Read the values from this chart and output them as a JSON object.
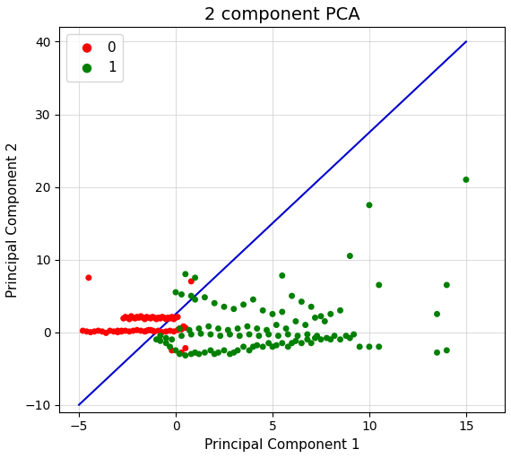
{
  "title": "2 component PCA",
  "xlabel": "Principal Component 1",
  "ylabel": "Principal Component 2",
  "xlim": [
    -6,
    17
  ],
  "ylim": [
    -11,
    42
  ],
  "xticks": [
    -5,
    0,
    5,
    10,
    15
  ],
  "yticks": [
    -10,
    0,
    10,
    20,
    30,
    40
  ],
  "line_x": [
    -5,
    15
  ],
  "line_y": [
    -10,
    40
  ],
  "line_color": "#0000cc",
  "line_width": 1.5,
  "red_color": "#ff0000",
  "green_color": "#008000",
  "point_size": 25,
  "grid_color": "#cccccc",
  "bg_color": "#ffffff",
  "title_fontsize": 14,
  "label_fontsize": 11,
  "tick_fontsize": 10,
  "red_points": [
    [
      -4.8,
      0.2
    ],
    [
      -4.6,
      0.1
    ],
    [
      -4.4,
      0.0
    ],
    [
      -4.2,
      0.1
    ],
    [
      -4.0,
      0.2
    ],
    [
      -3.8,
      0.1
    ],
    [
      -3.6,
      -0.1
    ],
    [
      -3.4,
      0.2
    ],
    [
      -3.2,
      0.1
    ],
    [
      -3.0,
      0.0
    ],
    [
      -2.8,
      0.2
    ],
    [
      -2.7,
      1.9
    ],
    [
      -2.6,
      2.1
    ],
    [
      -2.5,
      2.0
    ],
    [
      -2.4,
      1.8
    ],
    [
      -2.3,
      2.2
    ],
    [
      -2.2,
      2.0
    ],
    [
      -2.1,
      1.9
    ],
    [
      -2.0,
      2.1
    ],
    [
      -1.9,
      2.0
    ],
    [
      -1.8,
      2.2
    ],
    [
      -1.7,
      2.0
    ],
    [
      -1.6,
      1.8
    ],
    [
      -1.5,
      2.1
    ],
    [
      -1.4,
      2.0
    ],
    [
      -1.3,
      1.9
    ],
    [
      -1.2,
      2.1
    ],
    [
      -1.1,
      2.0
    ],
    [
      -1.0,
      1.8
    ],
    [
      -0.9,
      2.0
    ],
    [
      -0.8,
      1.9
    ],
    [
      -0.7,
      2.1
    ],
    [
      -0.6,
      2.0
    ],
    [
      -0.5,
      1.8
    ],
    [
      -0.4,
      2.0
    ],
    [
      -0.3,
      1.9
    ],
    [
      -0.2,
      2.1
    ],
    [
      -0.1,
      1.8
    ],
    [
      0.0,
      2.0
    ],
    [
      0.1,
      2.1
    ],
    [
      -1.5,
      0.2
    ],
    [
      -1.3,
      0.3
    ],
    [
      -1.1,
      0.1
    ],
    [
      -0.9,
      0.2
    ],
    [
      -0.7,
      0.0
    ],
    [
      -0.5,
      0.1
    ],
    [
      -0.3,
      0.2
    ],
    [
      -0.1,
      0.1
    ],
    [
      0.1,
      0.3
    ],
    [
      0.3,
      0.4
    ],
    [
      -2.0,
      0.3
    ],
    [
      -1.8,
      0.2
    ],
    [
      -1.6,
      0.1
    ],
    [
      -1.4,
      0.3
    ],
    [
      -1.2,
      0.2
    ],
    [
      -3.0,
      0.2
    ],
    [
      -2.8,
      0.1
    ],
    [
      -2.6,
      0.2
    ],
    [
      -2.4,
      0.1
    ],
    [
      -2.2,
      0.2
    ],
    [
      -4.5,
      7.5
    ],
    [
      0.8,
      7.0
    ],
    [
      -0.2,
      -2.5
    ],
    [
      0.3,
      -2.8
    ],
    [
      0.5,
      -2.2
    ],
    [
      0.2,
      0.5
    ],
    [
      0.4,
      0.8
    ],
    [
      0.5,
      0.6
    ]
  ],
  "green_points": [
    [
      -1.0,
      -1.0
    ],
    [
      -0.8,
      -1.2
    ],
    [
      -0.5,
      -1.5
    ],
    [
      -0.3,
      -2.0
    ],
    [
      0.0,
      -2.5
    ],
    [
      0.2,
      -3.0
    ],
    [
      0.5,
      -3.2
    ],
    [
      0.8,
      -3.0
    ],
    [
      1.0,
      -2.8
    ],
    [
      1.2,
      -3.0
    ],
    [
      1.5,
      -2.8
    ],
    [
      1.8,
      -2.5
    ],
    [
      2.0,
      -3.0
    ],
    [
      2.2,
      -2.8
    ],
    [
      2.5,
      -2.5
    ],
    [
      2.8,
      -3.0
    ],
    [
      3.0,
      -2.8
    ],
    [
      3.2,
      -2.5
    ],
    [
      3.5,
      -2.0
    ],
    [
      3.8,
      -2.5
    ],
    [
      4.0,
      -2.0
    ],
    [
      4.2,
      -1.8
    ],
    [
      4.5,
      -2.0
    ],
    [
      4.8,
      -1.5
    ],
    [
      5.0,
      -2.0
    ],
    [
      5.2,
      -1.8
    ],
    [
      5.5,
      -1.5
    ],
    [
      5.8,
      -2.0
    ],
    [
      6.0,
      -1.5
    ],
    [
      6.2,
      -1.2
    ],
    [
      6.5,
      -1.5
    ],
    [
      6.8,
      -1.0
    ],
    [
      7.0,
      -1.5
    ],
    [
      7.2,
      -0.8
    ],
    [
      7.5,
      -1.0
    ],
    [
      7.8,
      -0.8
    ],
    [
      8.0,
      -1.0
    ],
    [
      8.2,
      -0.5
    ],
    [
      8.5,
      -1.0
    ],
    [
      8.8,
      -0.5
    ],
    [
      9.0,
      -0.8
    ],
    [
      9.2,
      -0.3
    ],
    [
      9.5,
      -2.0
    ],
    [
      10.0,
      -2.0
    ],
    [
      10.5,
      -2.0
    ],
    [
      13.5,
      -2.8
    ],
    [
      -0.8,
      -0.5
    ],
    [
      -0.5,
      -0.8
    ],
    [
      -0.2,
      -1.0
    ],
    [
      0.3,
      -0.5
    ],
    [
      0.8,
      -0.3
    ],
    [
      1.3,
      -0.2
    ],
    [
      1.8,
      -0.3
    ],
    [
      2.3,
      -0.5
    ],
    [
      2.8,
      -0.3
    ],
    [
      3.3,
      -0.5
    ],
    [
      3.8,
      -0.3
    ],
    [
      4.3,
      -0.5
    ],
    [
      4.8,
      -0.3
    ],
    [
      5.3,
      -0.5
    ],
    [
      5.8,
      -0.3
    ],
    [
      6.3,
      -0.5
    ],
    [
      6.8,
      -0.3
    ],
    [
      7.3,
      -0.5
    ],
    [
      0.0,
      5.5
    ],
    [
      0.3,
      5.2
    ],
    [
      0.8,
      5.0
    ],
    [
      1.0,
      4.5
    ],
    [
      1.5,
      4.8
    ],
    [
      2.0,
      4.0
    ],
    [
      2.5,
      3.5
    ],
    [
      3.0,
      3.2
    ],
    [
      3.5,
      3.8
    ],
    [
      4.0,
      4.5
    ],
    [
      4.5,
      3.0
    ],
    [
      5.0,
      2.5
    ],
    [
      5.5,
      2.8
    ],
    [
      6.0,
      5.0
    ],
    [
      6.5,
      4.2
    ],
    [
      7.0,
      3.5
    ],
    [
      7.5,
      2.2
    ],
    [
      8.0,
      2.5
    ],
    [
      8.5,
      3.0
    ],
    [
      9.0,
      10.5
    ],
    [
      10.0,
      17.5
    ],
    [
      15.0,
      21.0
    ],
    [
      14.0,
      6.5
    ],
    [
      13.5,
      2.5
    ],
    [
      14.0,
      -2.5
    ],
    [
      0.2,
      0.5
    ],
    [
      0.7,
      0.3
    ],
    [
      1.2,
      0.5
    ],
    [
      1.7,
      0.8
    ],
    [
      2.2,
      0.5
    ],
    [
      2.7,
      0.3
    ],
    [
      3.2,
      0.5
    ],
    [
      3.7,
      0.8
    ],
    [
      4.2,
      0.5
    ],
    [
      4.7,
      0.3
    ],
    [
      5.2,
      1.0
    ],
    [
      5.7,
      0.5
    ],
    [
      6.2,
      1.5
    ],
    [
      6.7,
      1.0
    ],
    [
      7.2,
      2.0
    ],
    [
      7.7,
      1.5
    ],
    [
      0.5,
      8.0
    ],
    [
      1.0,
      7.5
    ],
    [
      5.5,
      7.8
    ],
    [
      10.5,
      6.5
    ]
  ]
}
